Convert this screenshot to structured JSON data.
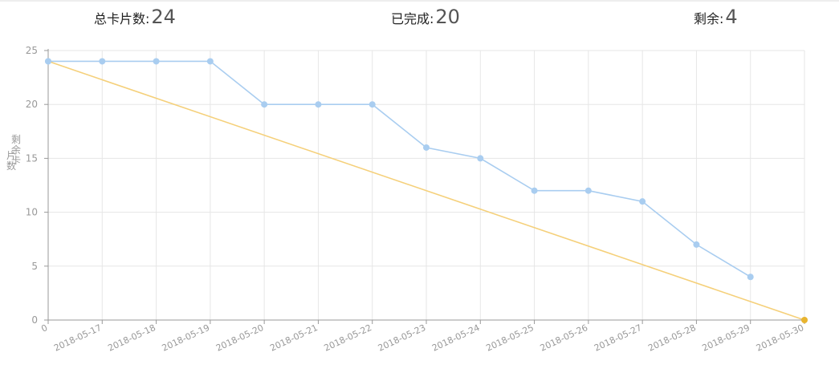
{
  "summary": {
    "total_label": "总卡片数:",
    "total_value": "24",
    "done_label": "已完成:",
    "done_value": "20",
    "remaining_label": "剩余:",
    "remaining_value": "4"
  },
  "chart_data": {
    "type": "line",
    "title": "",
    "xlabel": "",
    "ylabel": "剩余卡片数",
    "ylim": [
      0,
      25
    ],
    "yticks": [
      0,
      5,
      10,
      15,
      20,
      25
    ],
    "categories": [
      "0",
      "2018-05-17",
      "2018-05-18",
      "2018-05-19",
      "2018-05-20",
      "2018-05-21",
      "2018-05-22",
      "2018-05-23",
      "2018-05-24",
      "2018-05-25",
      "2018-05-26",
      "2018-05-27",
      "2018-05-28",
      "2018-05-29",
      "2018-05-30"
    ],
    "grid": true,
    "series": [
      {
        "color": "#a9cdf0",
        "values": [
          24,
          24,
          24,
          24,
          20,
          20,
          20,
          16,
          15,
          12,
          12,
          11,
          7,
          4,
          null
        ]
      },
      {
        "color": "#f5d07a",
        "marker_color": "#e8b42f",
        "values": [
          24,
          null,
          null,
          null,
          null,
          null,
          null,
          null,
          null,
          null,
          null,
          null,
          null,
          null,
          0
        ]
      }
    ]
  }
}
